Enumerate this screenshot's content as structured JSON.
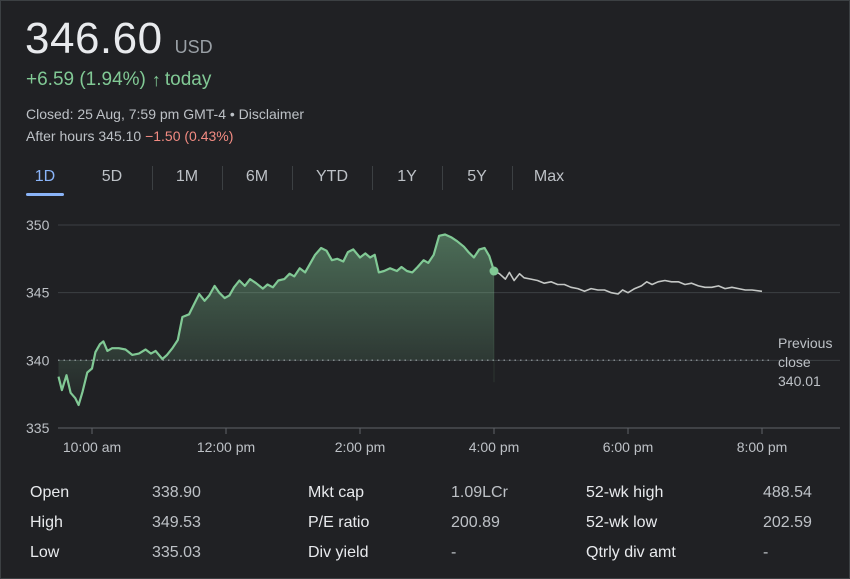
{
  "quote": {
    "price": "346.60",
    "currency": "USD",
    "change": "+6.59 (1.94%)",
    "change_arrow": "↑",
    "change_period": "today",
    "closed_text": "Closed: 25 Aug, 7:59 pm GMT-4 • Disclaimer",
    "after_hours_label": "After hours 345.10",
    "after_hours_change": "−1.50 (0.43%)"
  },
  "colors": {
    "positive": "#81c995",
    "negative": "#f28b82",
    "accent": "#8ab4f8",
    "after_hours_line": "#c4c7c5",
    "background": "#202124"
  },
  "ranges": {
    "selected": "1D",
    "items": [
      "1D",
      "5D",
      "1M",
      "6M",
      "YTD",
      "1Y",
      "5Y",
      "Max"
    ]
  },
  "chart_data": {
    "type": "line",
    "x_ticks": [
      "10:00 am",
      "12:00 pm",
      "2:00 pm",
      "4:00 pm",
      "6:00 pm",
      "8:00 pm"
    ],
    "y_ticks": [
      "350",
      "345",
      "340",
      "335"
    ],
    "ylim": [
      335,
      350
    ],
    "x_range_hours": [
      9,
      21
    ],
    "previous_close": {
      "label": "Previous close",
      "value": 340.01
    },
    "series": [
      {
        "session": "regular",
        "color": "#81c995",
        "points": [
          [
            9.5,
            338.8
          ],
          [
            9.55,
            337.8
          ],
          [
            9.62,
            338.9
          ],
          [
            9.68,
            337.6
          ],
          [
            9.75,
            337.2
          ],
          [
            9.8,
            336.7
          ],
          [
            9.86,
            337.7
          ],
          [
            9.93,
            339.1
          ],
          [
            10.0,
            339.4
          ],
          [
            10.05,
            340.6
          ],
          [
            10.12,
            341.2
          ],
          [
            10.17,
            341.4
          ],
          [
            10.23,
            340.7
          ],
          [
            10.3,
            340.9
          ],
          [
            10.4,
            340.9
          ],
          [
            10.5,
            340.8
          ],
          [
            10.6,
            340.4
          ],
          [
            10.7,
            340.5
          ],
          [
            10.8,
            340.8
          ],
          [
            10.88,
            340.5
          ],
          [
            10.95,
            340.7
          ],
          [
            11.05,
            340.1
          ],
          [
            11.12,
            340.4
          ],
          [
            11.2,
            340.9
          ],
          [
            11.28,
            341.5
          ],
          [
            11.35,
            343.2
          ],
          [
            11.45,
            343.4
          ],
          [
            11.52,
            344.1
          ],
          [
            11.6,
            344.9
          ],
          [
            11.68,
            344.4
          ],
          [
            11.75,
            344.8
          ],
          [
            11.83,
            345.5
          ],
          [
            11.9,
            345.0
          ],
          [
            11.98,
            344.6
          ],
          [
            12.05,
            344.8
          ],
          [
            12.12,
            345.4
          ],
          [
            12.2,
            345.9
          ],
          [
            12.28,
            345.5
          ],
          [
            12.36,
            346.0
          ],
          [
            12.45,
            345.7
          ],
          [
            12.55,
            345.3
          ],
          [
            12.62,
            345.6
          ],
          [
            12.7,
            345.4
          ],
          [
            12.78,
            345.9
          ],
          [
            12.87,
            346.0
          ],
          [
            12.95,
            346.4
          ],
          [
            13.02,
            346.2
          ],
          [
            13.1,
            346.8
          ],
          [
            13.18,
            346.5
          ],
          [
            13.25,
            347.1
          ],
          [
            13.33,
            347.8
          ],
          [
            13.42,
            348.3
          ],
          [
            13.5,
            348.1
          ],
          [
            13.58,
            347.4
          ],
          [
            13.66,
            347.5
          ],
          [
            13.75,
            347.3
          ],
          [
            13.82,
            348.0
          ],
          [
            13.9,
            348.2
          ],
          [
            14.0,
            347.6
          ],
          [
            14.08,
            347.9
          ],
          [
            14.15,
            347.6
          ],
          [
            14.22,
            347.8
          ],
          [
            14.28,
            346.5
          ],
          [
            14.36,
            346.6
          ],
          [
            14.45,
            346.8
          ],
          [
            14.55,
            346.6
          ],
          [
            14.62,
            346.9
          ],
          [
            14.7,
            346.6
          ],
          [
            14.78,
            346.5
          ],
          [
            14.86,
            346.9
          ],
          [
            14.95,
            347.4
          ],
          [
            15.02,
            347.2
          ],
          [
            15.1,
            347.8
          ],
          [
            15.18,
            349.2
          ],
          [
            15.27,
            349.3
          ],
          [
            15.36,
            349.1
          ],
          [
            15.45,
            348.8
          ],
          [
            15.55,
            348.4
          ],
          [
            15.62,
            348.0
          ],
          [
            15.7,
            347.6
          ],
          [
            15.78,
            348.2
          ],
          [
            15.86,
            348.3
          ],
          [
            15.93,
            347.7
          ],
          [
            16.0,
            346.6
          ]
        ]
      },
      {
        "session": "after_hours",
        "color": "#c4c7c5",
        "points": [
          [
            16.0,
            346.6
          ],
          [
            16.08,
            346.4
          ],
          [
            16.17,
            346.0
          ],
          [
            16.23,
            346.5
          ],
          [
            16.3,
            345.9
          ],
          [
            16.38,
            346.4
          ],
          [
            16.45,
            346.1
          ],
          [
            16.55,
            346.0
          ],
          [
            16.65,
            345.9
          ],
          [
            16.75,
            345.7
          ],
          [
            16.85,
            345.8
          ],
          [
            16.95,
            345.6
          ],
          [
            17.05,
            345.6
          ],
          [
            17.15,
            345.4
          ],
          [
            17.25,
            345.3
          ],
          [
            17.35,
            345.1
          ],
          [
            17.45,
            345.3
          ],
          [
            17.55,
            345.2
          ],
          [
            17.65,
            345.2
          ],
          [
            17.75,
            345.0
          ],
          [
            17.85,
            344.9
          ],
          [
            17.92,
            345.2
          ],
          [
            18.0,
            345.0
          ],
          [
            18.1,
            345.3
          ],
          [
            18.2,
            345.5
          ],
          [
            18.28,
            345.8
          ],
          [
            18.36,
            345.6
          ],
          [
            18.45,
            345.8
          ],
          [
            18.55,
            345.9
          ],
          [
            18.65,
            345.8
          ],
          [
            18.75,
            345.8
          ],
          [
            18.85,
            345.6
          ],
          [
            18.95,
            345.7
          ],
          [
            19.05,
            345.5
          ],
          [
            19.15,
            345.4
          ],
          [
            19.25,
            345.4
          ],
          [
            19.35,
            345.5
          ],
          [
            19.45,
            345.3
          ],
          [
            19.55,
            345.4
          ],
          [
            19.65,
            345.3
          ],
          [
            19.75,
            345.2
          ],
          [
            19.85,
            345.2
          ],
          [
            20.0,
            345.1
          ]
        ]
      }
    ]
  },
  "stats": {
    "col1": [
      {
        "label": "Open",
        "value": "338.90"
      },
      {
        "label": "High",
        "value": "349.53"
      },
      {
        "label": "Low",
        "value": "335.03"
      }
    ],
    "col2": [
      {
        "label": "Mkt cap",
        "value": "1.09LCr"
      },
      {
        "label": "P/E ratio",
        "value": "200.89"
      },
      {
        "label": "Div yield",
        "value": "-"
      }
    ],
    "col3": [
      {
        "label": "52-wk high",
        "value": "488.54"
      },
      {
        "label": "52-wk low",
        "value": "202.59"
      },
      {
        "label": "Qtrly div amt",
        "value": "-"
      }
    ]
  }
}
